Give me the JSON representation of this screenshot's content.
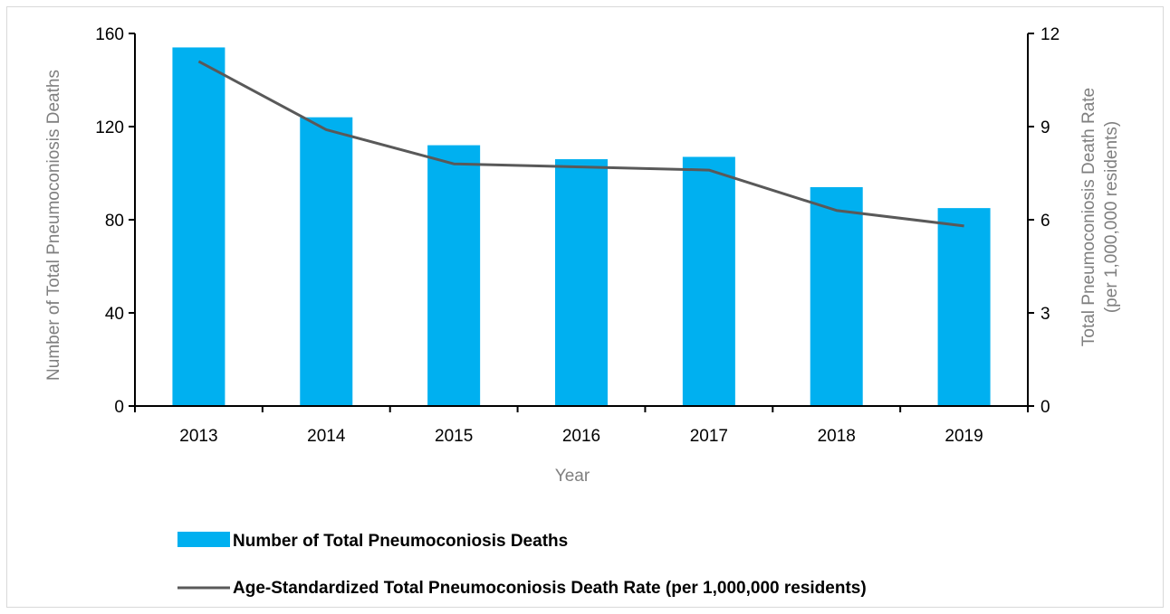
{
  "chart_data": {
    "type": "bar+line",
    "categories": [
      "2013",
      "2014",
      "2015",
      "2016",
      "2017",
      "2018",
      "2019"
    ],
    "series": [
      {
        "name": "Number of Total Pneumoconiosis Deaths",
        "type": "bar",
        "axis": "left",
        "values": [
          154,
          124,
          112,
          106,
          107,
          94,
          85
        ]
      },
      {
        "name": "Age-Standardized Total Pneumoconiosis Death Rate (per 1,000,000 residents)",
        "type": "line",
        "axis": "right",
        "values": [
          11.1,
          8.9,
          7.8,
          7.7,
          7.6,
          6.3,
          5.8
        ]
      }
    ],
    "xlabel": "Year",
    "ylabel": "Number of Total Pneumoconiosis Deaths",
    "ylabel_right_line1": "Total Pneumoconiosis Death Rate",
    "ylabel_right_line2": "(per 1,000,000 residents)",
    "ylim": [
      0,
      160
    ],
    "yticks": [
      "0",
      "40",
      "80",
      "120",
      "160"
    ],
    "ylim_right": [
      0,
      12
    ],
    "yticks_right": [
      "0",
      "3",
      "6",
      "9",
      "12"
    ],
    "grid": false,
    "legend_position": "bottom",
    "colors": {
      "bar": "#00b0f0",
      "line": "#595959",
      "axis": "#000000",
      "axis_title": "#7f7f7f"
    }
  }
}
